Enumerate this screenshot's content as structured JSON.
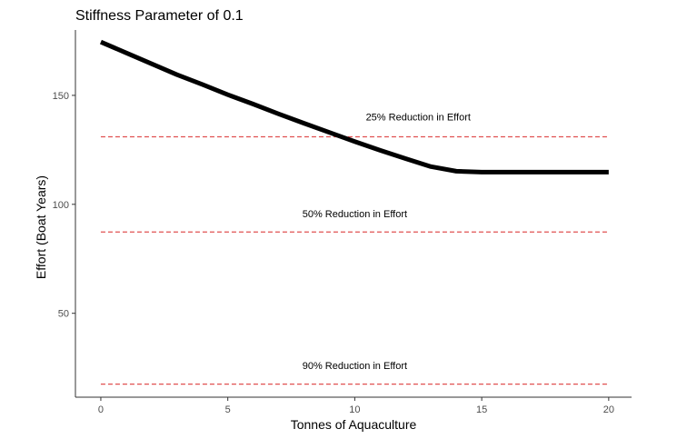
{
  "chart_data": {
    "type": "line",
    "title": "Stiffness Parameter of 0.1",
    "xlabel": "Tonnes of Aquaculture",
    "ylabel": "Effort (Boat Years)",
    "xlim": [
      -1,
      20.9
    ],
    "ylim": [
      11.5,
      180
    ],
    "x_ticks": [
      0,
      5,
      10,
      15,
      20
    ],
    "y_ticks": [
      50,
      100,
      150
    ],
    "grid": false,
    "series": [
      {
        "color": "#000000",
        "points": [
          [
            0,
            174.5
          ],
          [
            1,
            169.5
          ],
          [
            2,
            164.5
          ],
          [
            3,
            159.5
          ],
          [
            4,
            155
          ],
          [
            5,
            150.3
          ],
          [
            6,
            146
          ],
          [
            7,
            141.5
          ],
          [
            8,
            137.2
          ],
          [
            9,
            133
          ],
          [
            10,
            128.8
          ],
          [
            11,
            124.8
          ],
          [
            12,
            121
          ],
          [
            13,
            117.3
          ],
          [
            14,
            115.2
          ],
          [
            15,
            114.8
          ],
          [
            20,
            114.8
          ]
        ]
      }
    ],
    "reference_lines": [
      {
        "y": 131,
        "label": "25% Reduction in Effort",
        "label_x": 12.5,
        "label_y": 138.5,
        "color": "#e05050"
      },
      {
        "y": 87.3,
        "label": "50% Reduction in Effort",
        "label_x": 10,
        "label_y": 94,
        "color": "#e05050"
      },
      {
        "y": 17.5,
        "label": "90% Reduction in Effort",
        "label_x": 10,
        "label_y": 24.5,
        "color": "#e05050"
      }
    ]
  }
}
